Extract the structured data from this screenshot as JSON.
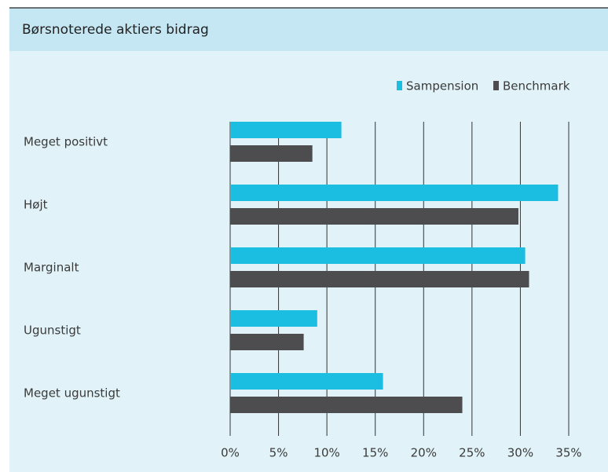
{
  "chart_data": {
    "type": "bar",
    "orientation": "horizontal",
    "title": "Børsnoterede aktiers bidrag",
    "categories": [
      "Meget positivt",
      "Højt",
      "Marginalt",
      "Ugunstigt",
      "Meget ugunstigt"
    ],
    "series": [
      {
        "name": "Sampension",
        "color": "#1bbde0",
        "values": [
          11.5,
          33.9,
          30.5,
          9.0,
          15.8
        ]
      },
      {
        "name": "Benchmark",
        "color": "#4d4d4f",
        "values": [
          8.5,
          29.8,
          30.9,
          7.6,
          24.0
        ]
      }
    ],
    "xlim": [
      0,
      35
    ],
    "xticks": [
      {
        "value": 0,
        "label": "0%"
      },
      {
        "value": 5,
        "label": "5%"
      },
      {
        "value": 10,
        "label": "10%"
      },
      {
        "value": 15,
        "label": "15%"
      },
      {
        "value": 20,
        "label": "20%"
      },
      {
        "value": 25,
        "label": "25%"
      },
      {
        "value": 30,
        "label": "30%"
      },
      {
        "value": 35,
        "label": "35%"
      }
    ],
    "grid": true,
    "legend": "top-right"
  }
}
